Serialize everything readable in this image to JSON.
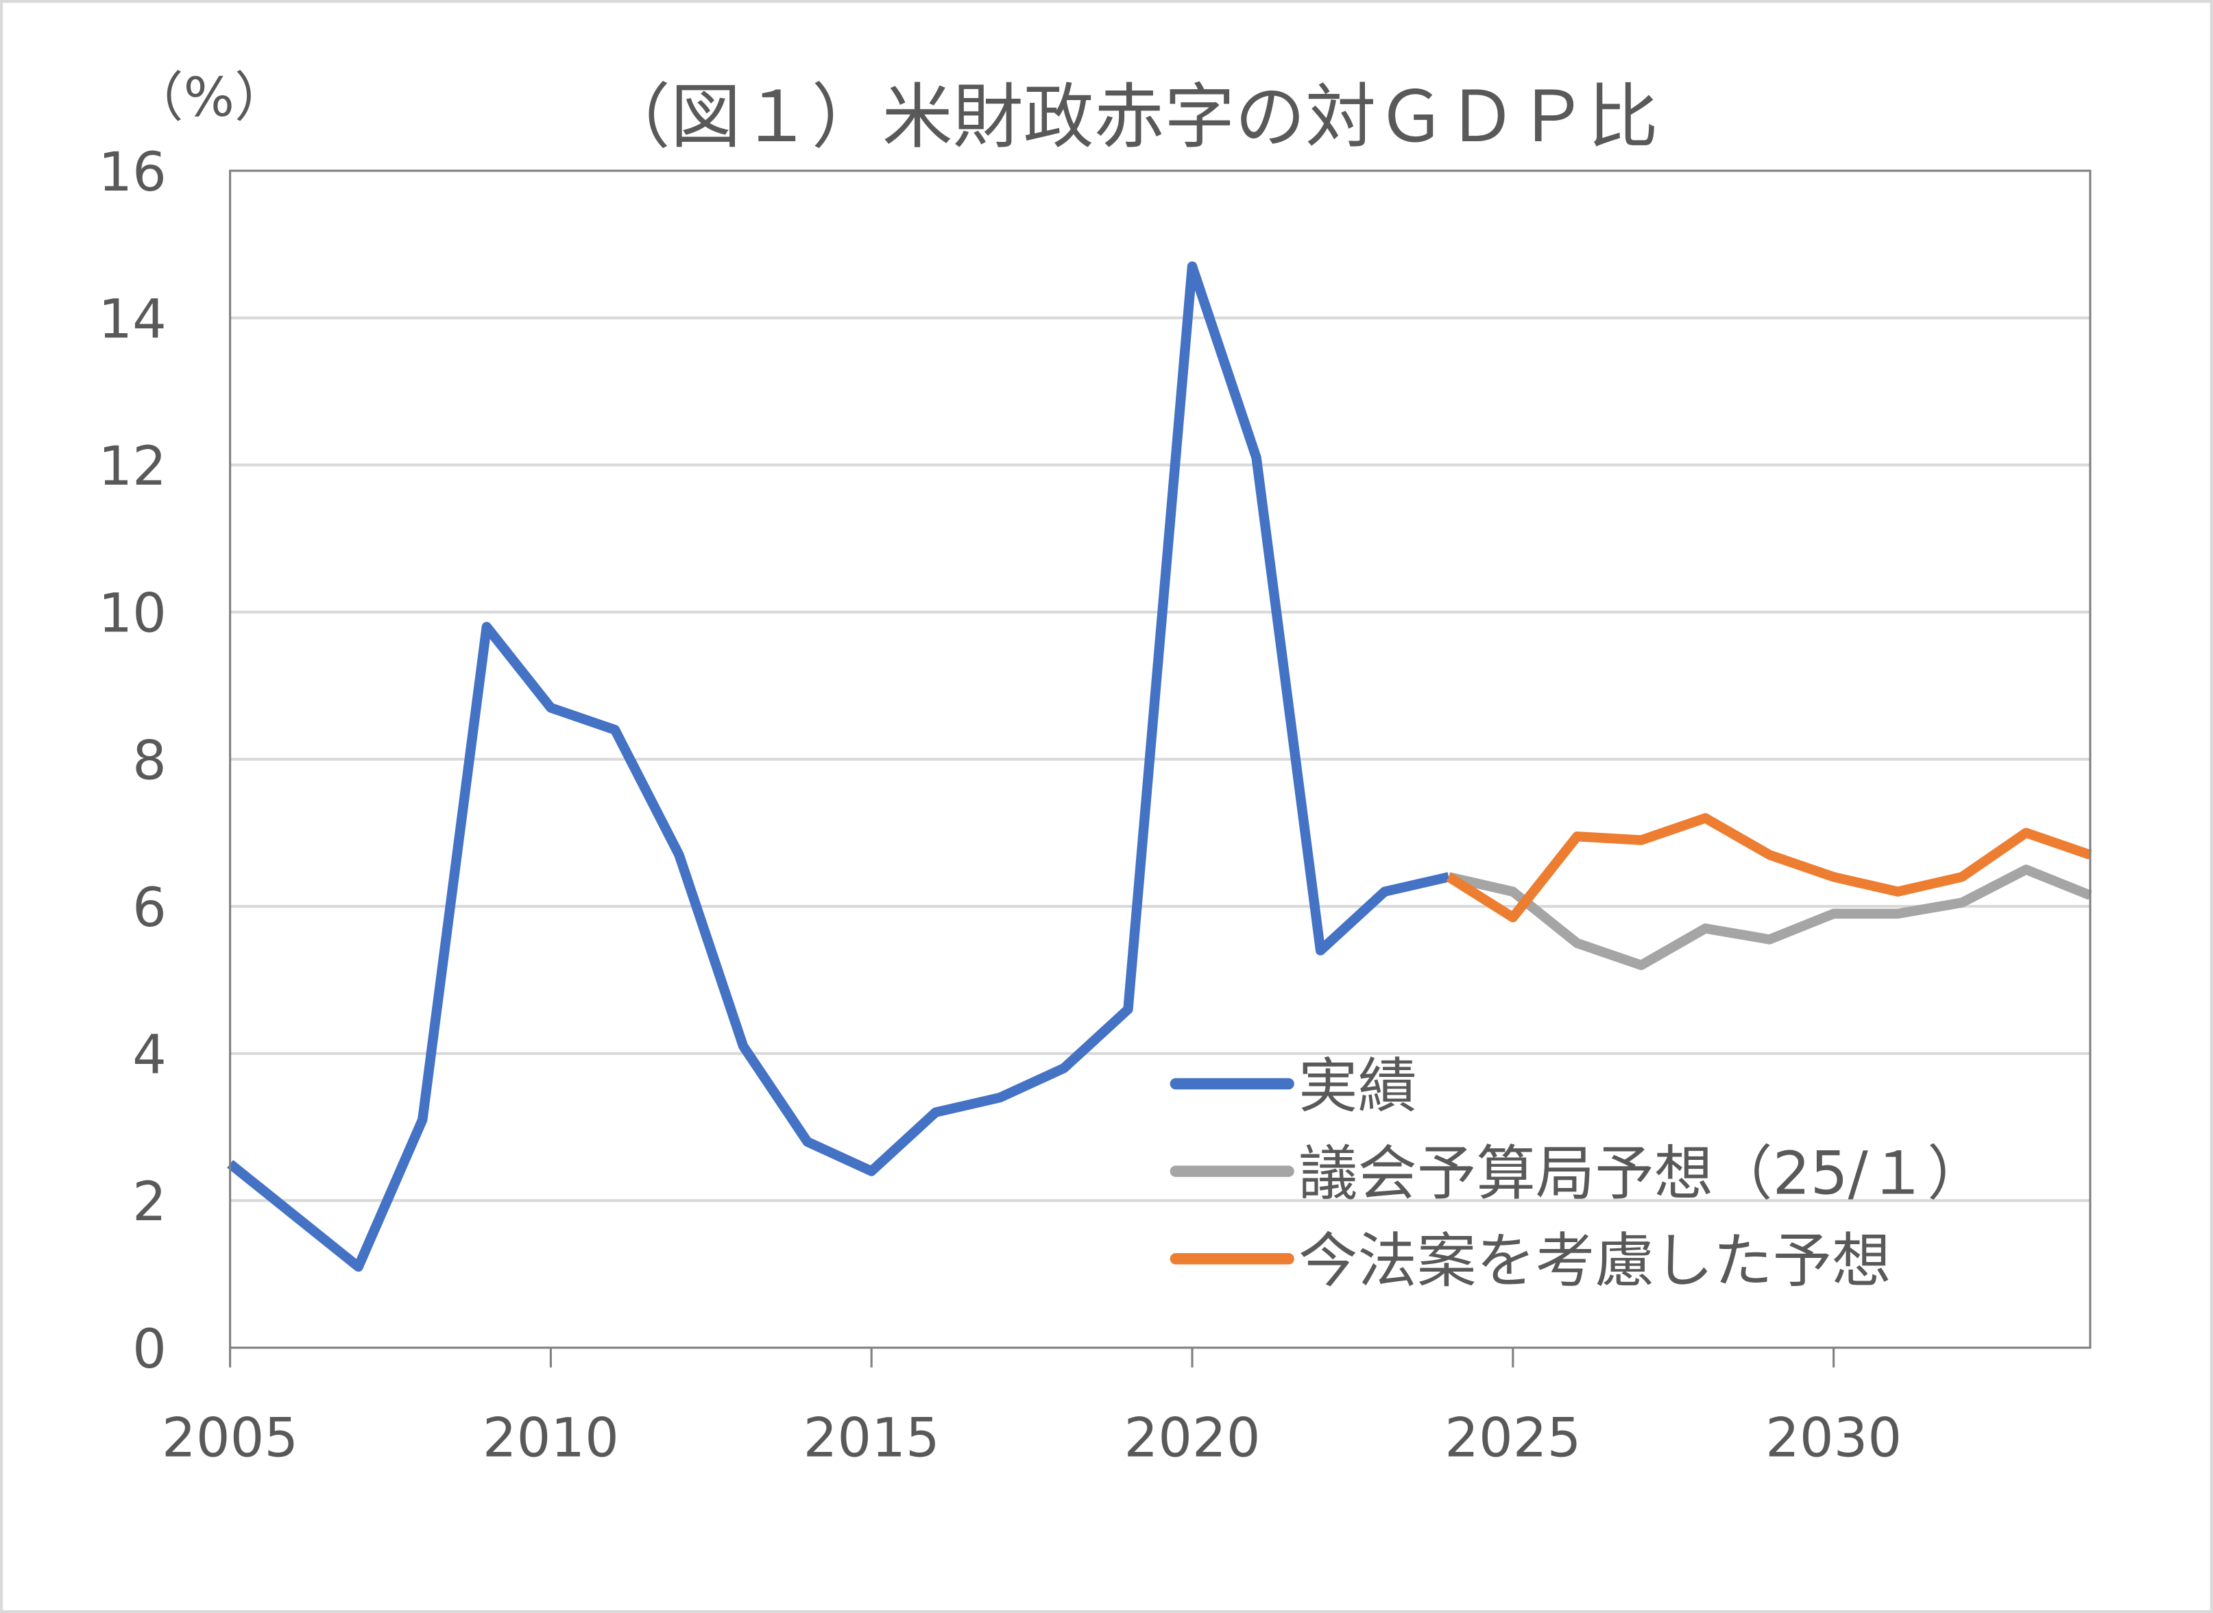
{
  "chart_data": {
    "type": "line",
    "title": "（図１）米財政赤字の対ＧＤＰ比",
    "ylabel": "（%）",
    "xlabel": "",
    "xlim": [
      2005,
      2034
    ],
    "ylim": [
      0,
      16
    ],
    "y_ticks": [
      "0",
      "2",
      "4",
      "6",
      "8",
      "10",
      "12",
      "14",
      "16"
    ],
    "x_ticks": [
      "2005",
      "2010",
      "2015",
      "2020",
      "2025",
      "2030"
    ],
    "grid": "horizontal",
    "legend_position": "bottom-right-inside",
    "series": [
      {
        "name": "実績",
        "color": "#4472C4",
        "x": [
          2005,
          2006,
          2007,
          2008,
          2009,
          2010,
          2011,
          2012,
          2013,
          2014,
          2015,
          2016,
          2017,
          2018,
          2019,
          2020,
          2021,
          2022,
          2023,
          2024
        ],
        "values": [
          2.5,
          1.8,
          1.1,
          3.1,
          9.8,
          8.7,
          8.4,
          6.7,
          4.1,
          2.8,
          2.4,
          3.2,
          3.4,
          3.8,
          4.6,
          14.7,
          12.1,
          5.4,
          6.2,
          6.4
        ]
      },
      {
        "name": "議会予算局予想（25/１）",
        "color": "#A5A5A5",
        "x": [
          2024,
          2025,
          2026,
          2027,
          2028,
          2029,
          2030,
          2031,
          2032,
          2033,
          2034
        ],
        "values": [
          6.4,
          6.2,
          5.5,
          5.2,
          5.7,
          5.55,
          5.9,
          5.9,
          6.05,
          6.5,
          6.15
        ]
      },
      {
        "name": "今法案を考慮した予想",
        "color": "#ED7D31",
        "x": [
          2024,
          2025,
          2026,
          2027,
          2028,
          2029,
          2030,
          2031,
          2032,
          2033,
          2034
        ],
        "values": [
          6.4,
          5.85,
          6.95,
          6.9,
          7.2,
          6.7,
          6.4,
          6.2,
          6.4,
          7.0,
          6.7
        ]
      }
    ]
  }
}
